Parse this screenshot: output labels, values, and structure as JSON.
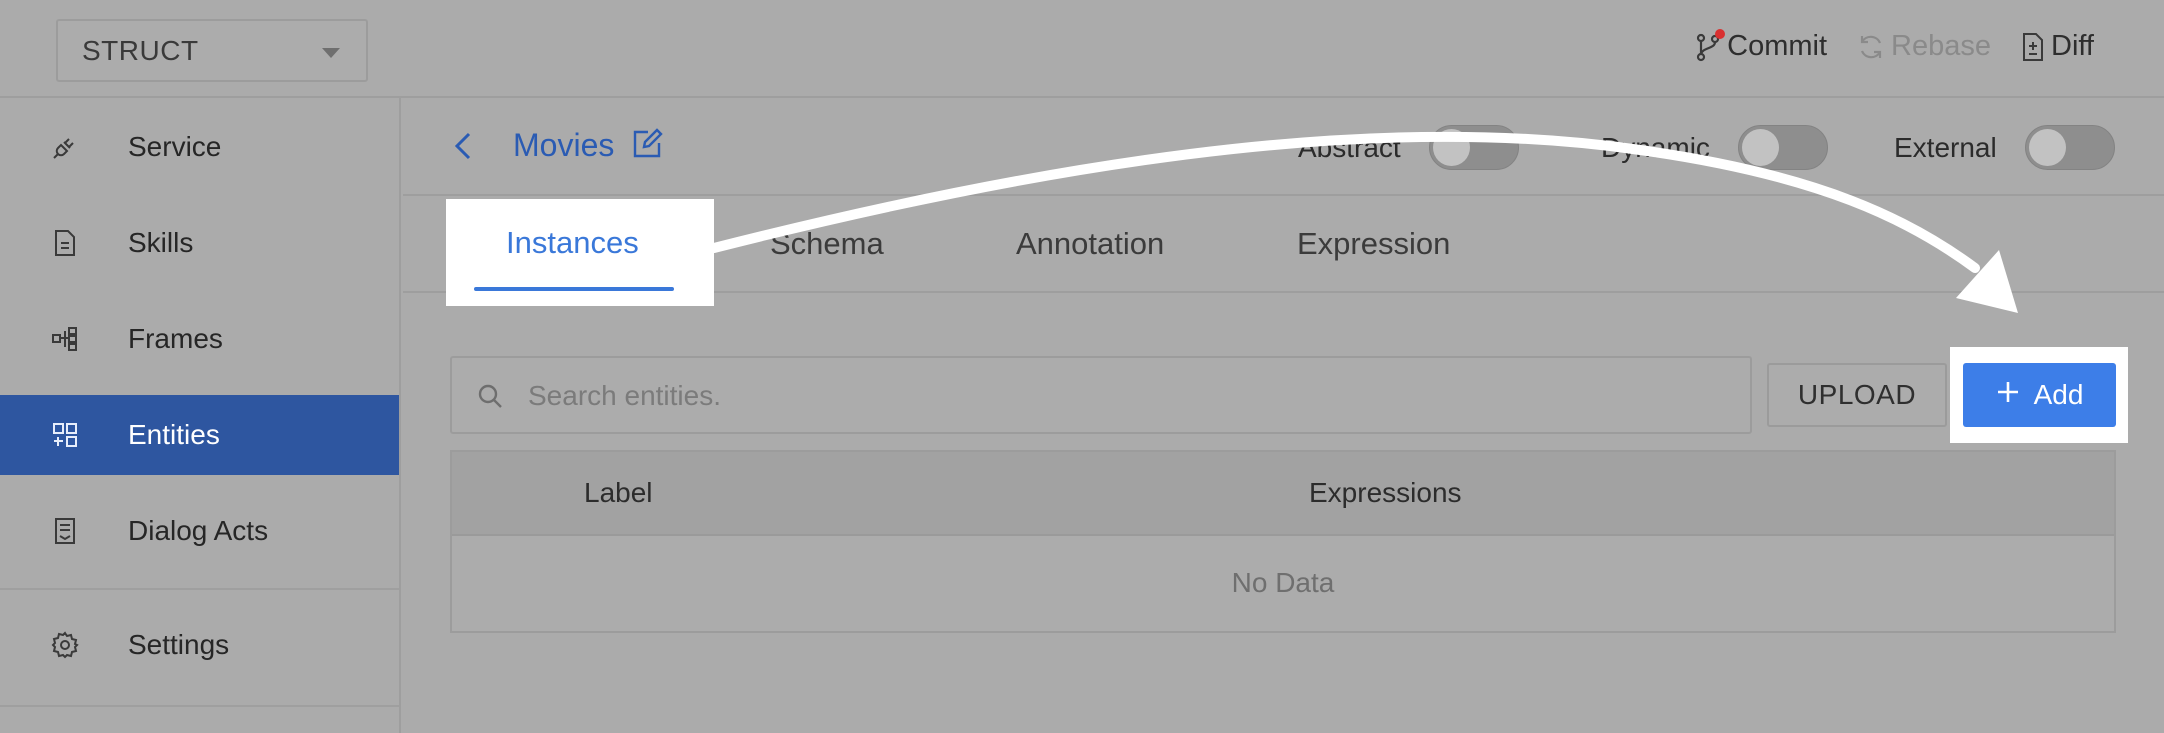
{
  "topbar": {
    "project": "STRUCT",
    "actions": [
      {
        "label": "Commit",
        "icon": "git-branch-icon"
      },
      {
        "label": "Rebase",
        "icon": "sync-icon"
      },
      {
        "label": "Diff",
        "icon": "diff-file-icon"
      }
    ]
  },
  "sidebar": {
    "items": [
      {
        "label": "Service",
        "icon": "plug-icon"
      },
      {
        "label": "Skills",
        "icon": "document-icon"
      },
      {
        "label": "Frames",
        "icon": "frames-icon"
      },
      {
        "label": "Entities",
        "icon": "entities-icon",
        "active": true
      },
      {
        "label": "Dialog Acts",
        "icon": "dialog-acts-icon"
      },
      {
        "label": "Settings",
        "icon": "gear-icon"
      }
    ]
  },
  "entity": {
    "title": "Movies",
    "toggles": [
      {
        "label": "Abstract",
        "on": false
      },
      {
        "label": "Dynamic",
        "on": false
      },
      {
        "label": "External",
        "on": false
      }
    ]
  },
  "tabs": [
    "Instances",
    "Schema",
    "Annotation",
    "Expression"
  ],
  "search": {
    "placeholder": "Search entities."
  },
  "buttons": {
    "upload": "UPLOAD",
    "add": "Add"
  },
  "table": {
    "columns": [
      "Label",
      "Expressions"
    ],
    "empty_text": "No Data"
  },
  "colors": {
    "accent": "#3d7ee8",
    "sidebar_active": "#2e56a0",
    "overlay": "#ababab",
    "annotation_arrow": "#ffffff"
  }
}
